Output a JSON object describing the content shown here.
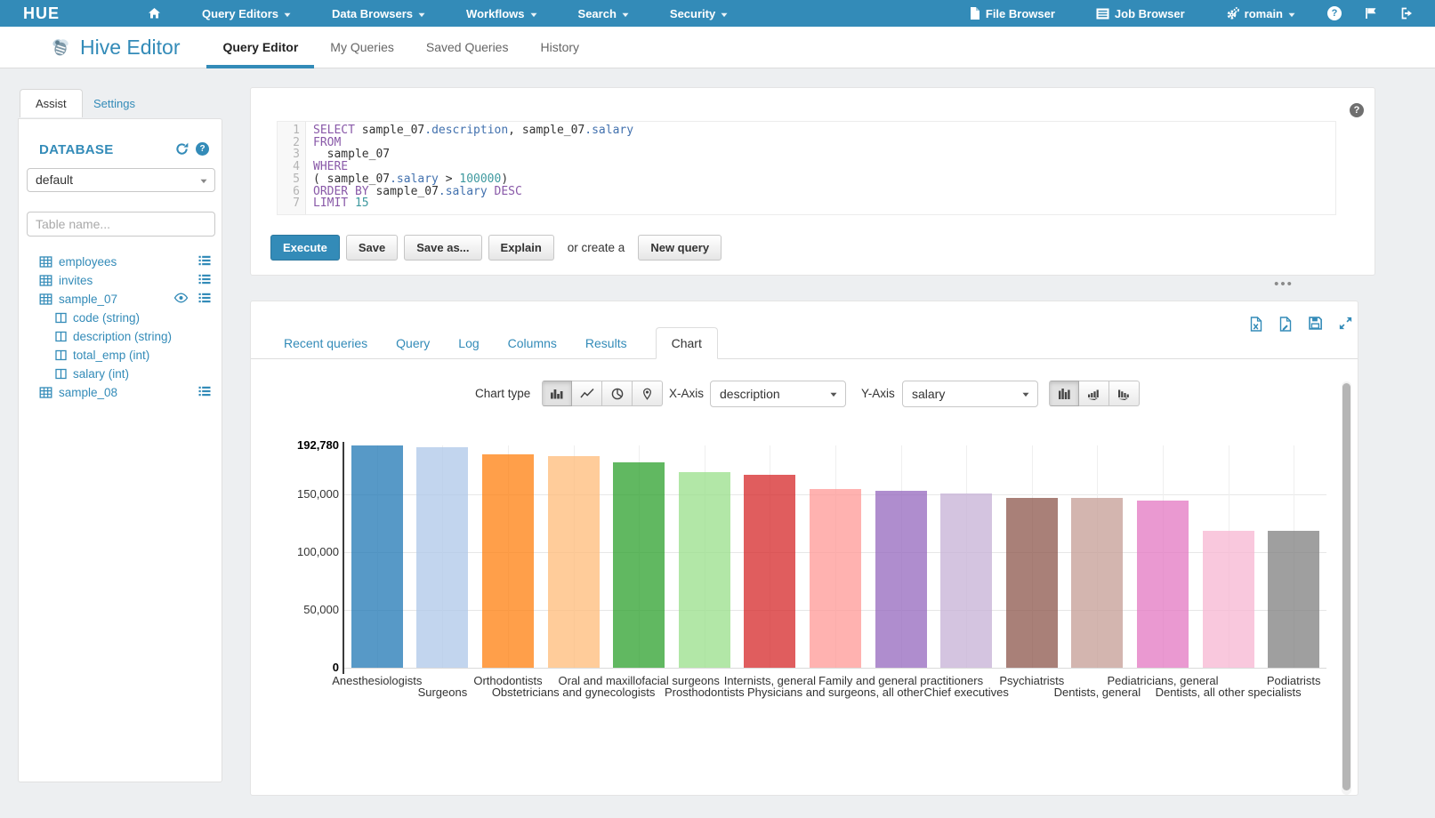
{
  "colors": {
    "brand_blue": "#338bb8",
    "code_keyword": "#8959a8",
    "code_attribute": "#4271ae",
    "code_number": "#3e999f",
    "bar_palette": [
      "#1f77b4",
      "#aec7e8",
      "#ff7f0e",
      "#ffbb78",
      "#2ca02c",
      "#98df8a",
      "#d62728",
      "#ff9896",
      "#9467bd",
      "#c5b0d5",
      "#8c564b",
      "#c49c94",
      "#e377c2",
      "#f7b6d2",
      "#7f7f7f"
    ]
  },
  "topnav": {
    "brand": "HUE",
    "menus": [
      {
        "label": "Query Editors",
        "icon": "caret-down-icon"
      },
      {
        "label": "Data Browsers",
        "icon": "caret-down-icon"
      },
      {
        "label": "Workflows",
        "icon": "caret-down-icon"
      },
      {
        "label": "Search",
        "icon": "caret-down-icon"
      },
      {
        "label": "Security",
        "icon": "caret-down-icon"
      }
    ],
    "right": [
      {
        "label": "File Browser",
        "icon": "file-icon"
      },
      {
        "label": "Job Browser",
        "icon": "job-browser-icon"
      },
      {
        "label": "romain",
        "icon": "gears-icon",
        "caret": true
      }
    ],
    "icon_buttons": [
      "help-icon",
      "flag-icon",
      "sign-out-icon"
    ]
  },
  "header": {
    "app_title": "Hive Editor",
    "app_icon": "bee-icon",
    "tabs": [
      {
        "label": "Query Editor",
        "active": true
      },
      {
        "label": "My Queries",
        "active": false
      },
      {
        "label": "Saved Queries",
        "active": false
      },
      {
        "label": "History",
        "active": false
      }
    ]
  },
  "sidebar": {
    "tabs": {
      "assist": "Assist",
      "settings": "Settings"
    },
    "database_label": "DATABASE",
    "database_value": "default",
    "table_filter_placeholder": "Table name...",
    "tables": [
      {
        "name": "employees",
        "actions": [
          "menu"
        ]
      },
      {
        "name": "invites",
        "actions": [
          "menu"
        ]
      },
      {
        "name": "sample_07",
        "actions": [
          "eye",
          "menu"
        ],
        "columns": [
          "code (string)",
          "description (string)",
          "total_emp (int)",
          "salary (int)"
        ]
      },
      {
        "name": "sample_08",
        "actions": [
          "menu"
        ]
      }
    ]
  },
  "sql": {
    "lines": [
      [
        {
          "t": "SELECT",
          "c": "kw"
        },
        {
          "t": " sample_07",
          "c": "pl"
        },
        {
          "t": ".description",
          "c": "at"
        },
        {
          "t": ", sample_07",
          "c": "pl"
        },
        {
          "t": ".salary",
          "c": "at"
        }
      ],
      [
        {
          "t": "FROM",
          "c": "kw"
        }
      ],
      [
        {
          "t": "  sample_07",
          "c": "pl"
        }
      ],
      [
        {
          "t": "WHERE",
          "c": "kw"
        }
      ],
      [
        {
          "t": "( sample_07",
          "c": "pl"
        },
        {
          "t": ".salary",
          "c": "at"
        },
        {
          "t": " > ",
          "c": "pl"
        },
        {
          "t": "100000",
          "c": "num"
        },
        {
          "t": ")",
          "c": "pl"
        }
      ],
      [
        {
          "t": "ORDER BY",
          "c": "kw"
        },
        {
          "t": " sample_07",
          "c": "pl"
        },
        {
          "t": ".salary",
          "c": "at"
        },
        {
          "t": " ",
          "c": "pl"
        },
        {
          "t": "DESC",
          "c": "kw"
        }
      ],
      [
        {
          "t": "LIMIT",
          "c": "kw"
        },
        {
          "t": " ",
          "c": "pl"
        },
        {
          "t": "15",
          "c": "num"
        }
      ]
    ],
    "buttons": {
      "execute": "Execute",
      "save": "Save",
      "save_as": "Save as...",
      "explain": "Explain",
      "or_create": "or create a",
      "new_query": "New query"
    }
  },
  "results": {
    "tabs": [
      "Recent queries",
      "Query",
      "Log",
      "Columns",
      "Results",
      "Chart"
    ],
    "active_tab": "Chart",
    "controls": {
      "chart_type_label": "Chart type",
      "chart_type_buttons": [
        "bar-chart-icon",
        "line-chart-icon",
        "pie-chart-icon",
        "map-marker-icon"
      ],
      "chart_type_active": 0,
      "x_axis_label": "X-Axis",
      "x_axis_value": "description",
      "y_axis_label": "Y-Axis",
      "y_axis_value": "salary",
      "sort_buttons": [
        "bars-icon",
        "sort-ascending-icon",
        "sort-descending-icon"
      ],
      "sort_active": 0
    }
  },
  "chart_data": {
    "type": "bar",
    "title": "",
    "xlabel": "description",
    "ylabel": "salary",
    "categories": [
      "Anesthesiologists",
      "Surgeons",
      "Orthodontists",
      "Obstetricians and gynecologists",
      "Oral and maxillofacial surgeons",
      "Prosthodontists",
      "Internists, general",
      "Physicians and surgeons, all other",
      "Family and general practitioners",
      "Chief executives",
      "Psychiatrists",
      "Dentists, general",
      "Pediatricians, general",
      "Dentists, all other specialists",
      "Podiatrists"
    ],
    "values": [
      192780,
      191410,
      185340,
      183600,
      178440,
      169810,
      167270,
      155150,
      153640,
      151370,
      147620,
      147010,
      145210,
      118820,
      118500
    ],
    "ylim": [
      0,
      192780
    ],
    "yticks": [
      {
        "label": "192,780",
        "value": 192780,
        "bold": true
      },
      {
        "label": "150,000",
        "value": 150000,
        "bold": false
      },
      {
        "label": "100,000",
        "value": 100000,
        "bold": false
      },
      {
        "label": "50,000",
        "value": 50000,
        "bold": false
      },
      {
        "label": "0",
        "value": 0,
        "bold": true
      }
    ],
    "grid": true,
    "legend": "none"
  }
}
